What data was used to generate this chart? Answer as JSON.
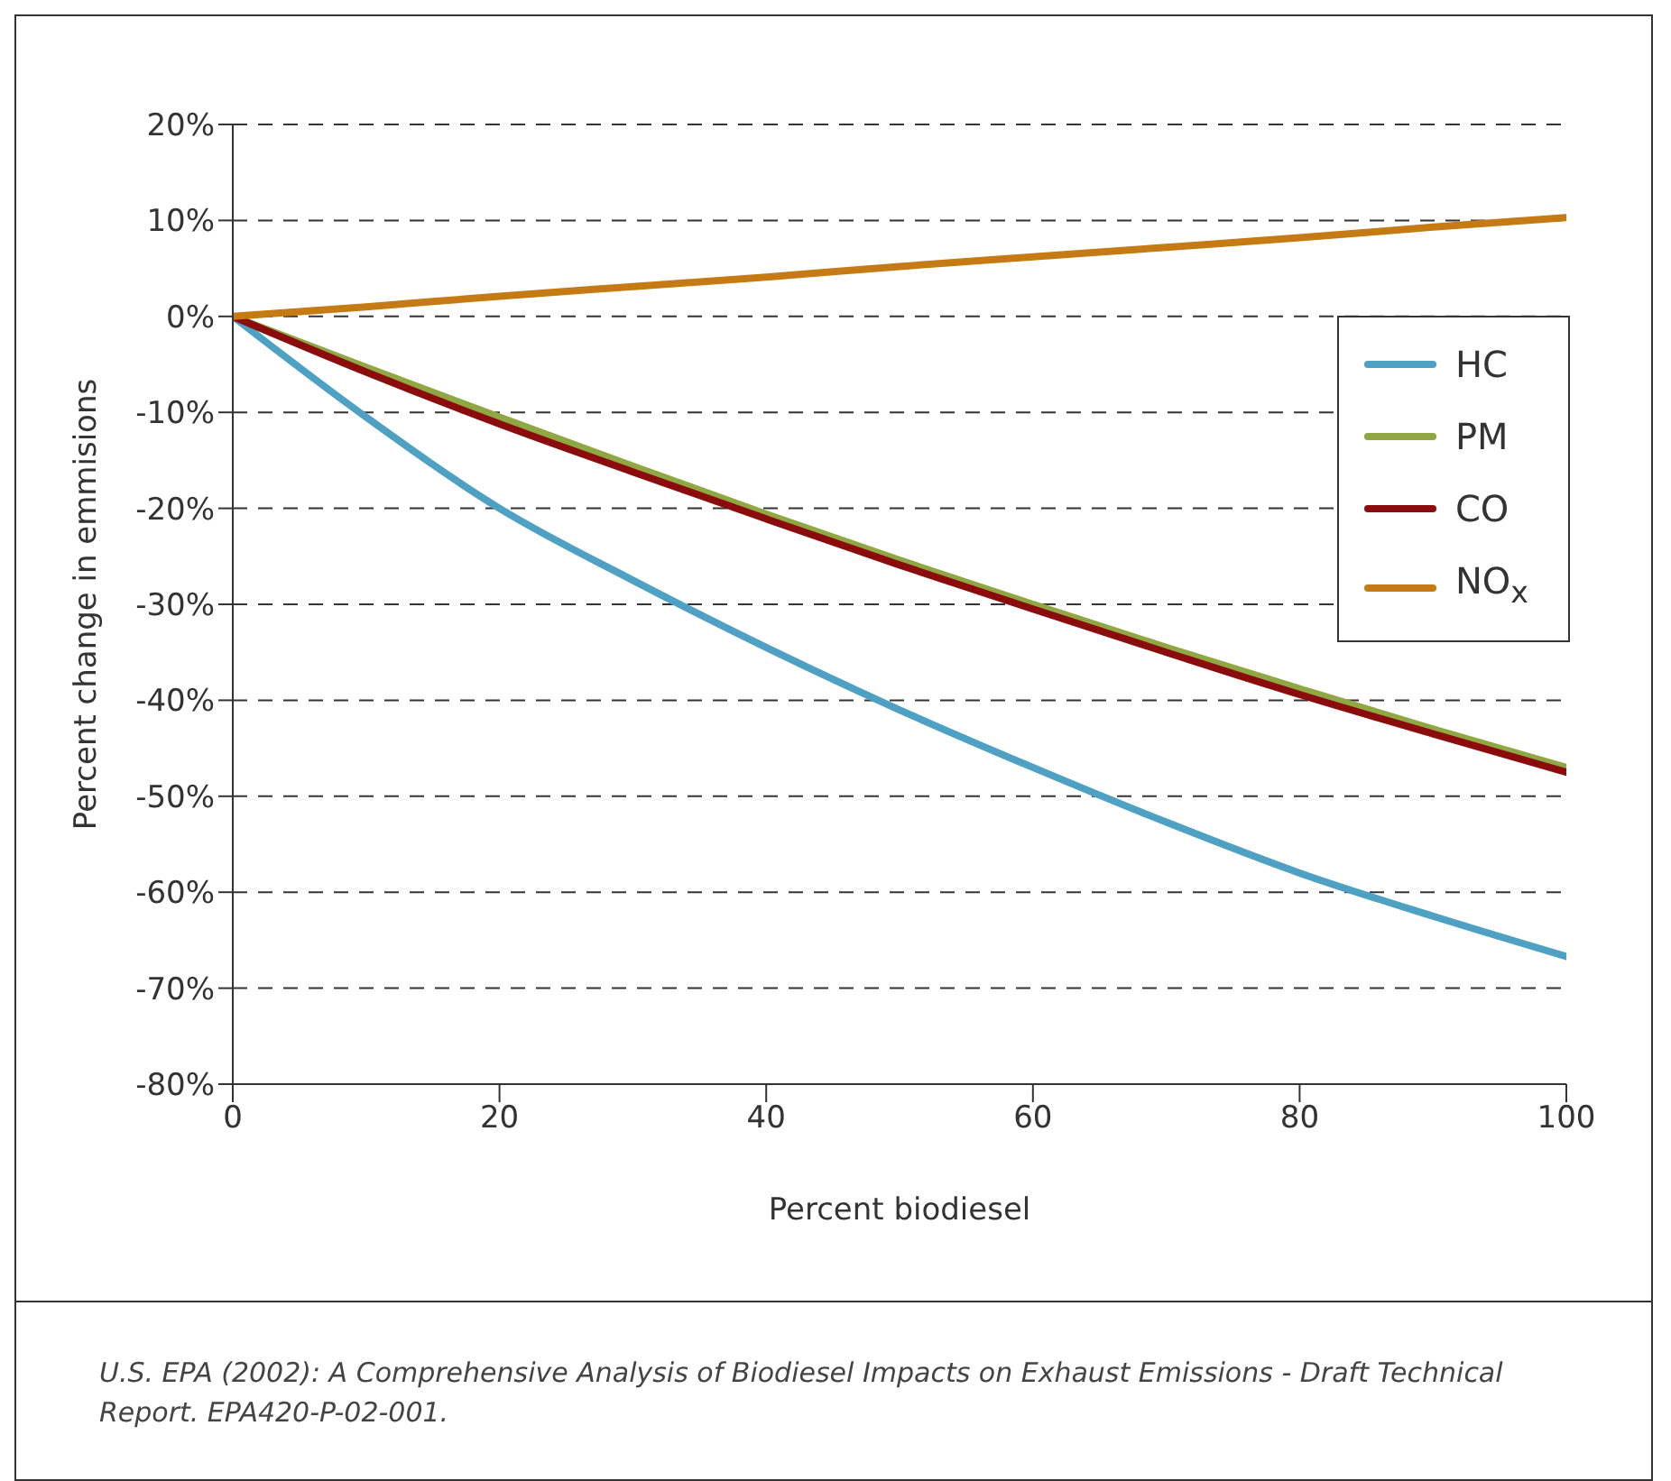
{
  "chart_data": {
    "type": "line",
    "xlabel": "Percent biodiesel",
    "ylabel": "Percent change in emmisions",
    "x": [
      0,
      10,
      20,
      30,
      40,
      50,
      60,
      70,
      80,
      90,
      100
    ],
    "series": [
      {
        "name": "HC",
        "color": "#4fa1c4",
        "values": [
          0,
          -10.5,
          -20,
          -27.5,
          -34.5,
          -41,
          -47,
          -52.7,
          -58,
          -62.5,
          -66.7
        ]
      },
      {
        "name": "PM",
        "color": "#8fa843",
        "values": [
          0,
          -5.3,
          -10.5,
          -15.6,
          -20.6,
          -25.4,
          -30,
          -34.5,
          -38.8,
          -43,
          -47
        ]
      },
      {
        "name": "CO",
        "color": "#8b0c0c",
        "values": [
          0,
          -5.8,
          -11.2,
          -16.2,
          -21.1,
          -25.9,
          -30.5,
          -35,
          -39.4,
          -43.5,
          -47.5
        ]
      },
      {
        "name": "NO$_{x}$",
        "color": "#c57a14",
        "values": [
          0,
          1,
          2.1,
          3.1,
          4.1,
          5.2,
          6.2,
          7.2,
          8.2,
          9.3,
          10.3
        ]
      }
    ],
    "xlim": [
      0,
      100
    ],
    "xticks": [
      0,
      20,
      40,
      60,
      80,
      100
    ],
    "ylim": [
      -80,
      20
    ],
    "yticks": [
      {
        "value": -80,
        "label": "-80%"
      },
      {
        "value": -70,
        "label": "-70%"
      },
      {
        "value": -60,
        "label": "-60%"
      },
      {
        "value": -50,
        "label": "-50%"
      },
      {
        "value": -40,
        "label": "-40%"
      },
      {
        "value": -30,
        "label": "-30%"
      },
      {
        "value": -20,
        "label": "-20%"
      },
      {
        "value": -10,
        "label": "-10%"
      },
      {
        "value": 0,
        "label": "0%"
      },
      {
        "value": 10,
        "label": "10%"
      },
      {
        "value": 20,
        "label": "20%"
      }
    ],
    "grid": "y",
    "legend": "top right",
    "marker": "none",
    "line_style": "solid",
    "annotations": [
      "U.S. EPA (2002): A Comprehensive Analysis of Biodiesel Impacts on Exhaust Emissions - Draft Technical Report. EPA420-P-02-001."
    ]
  }
}
